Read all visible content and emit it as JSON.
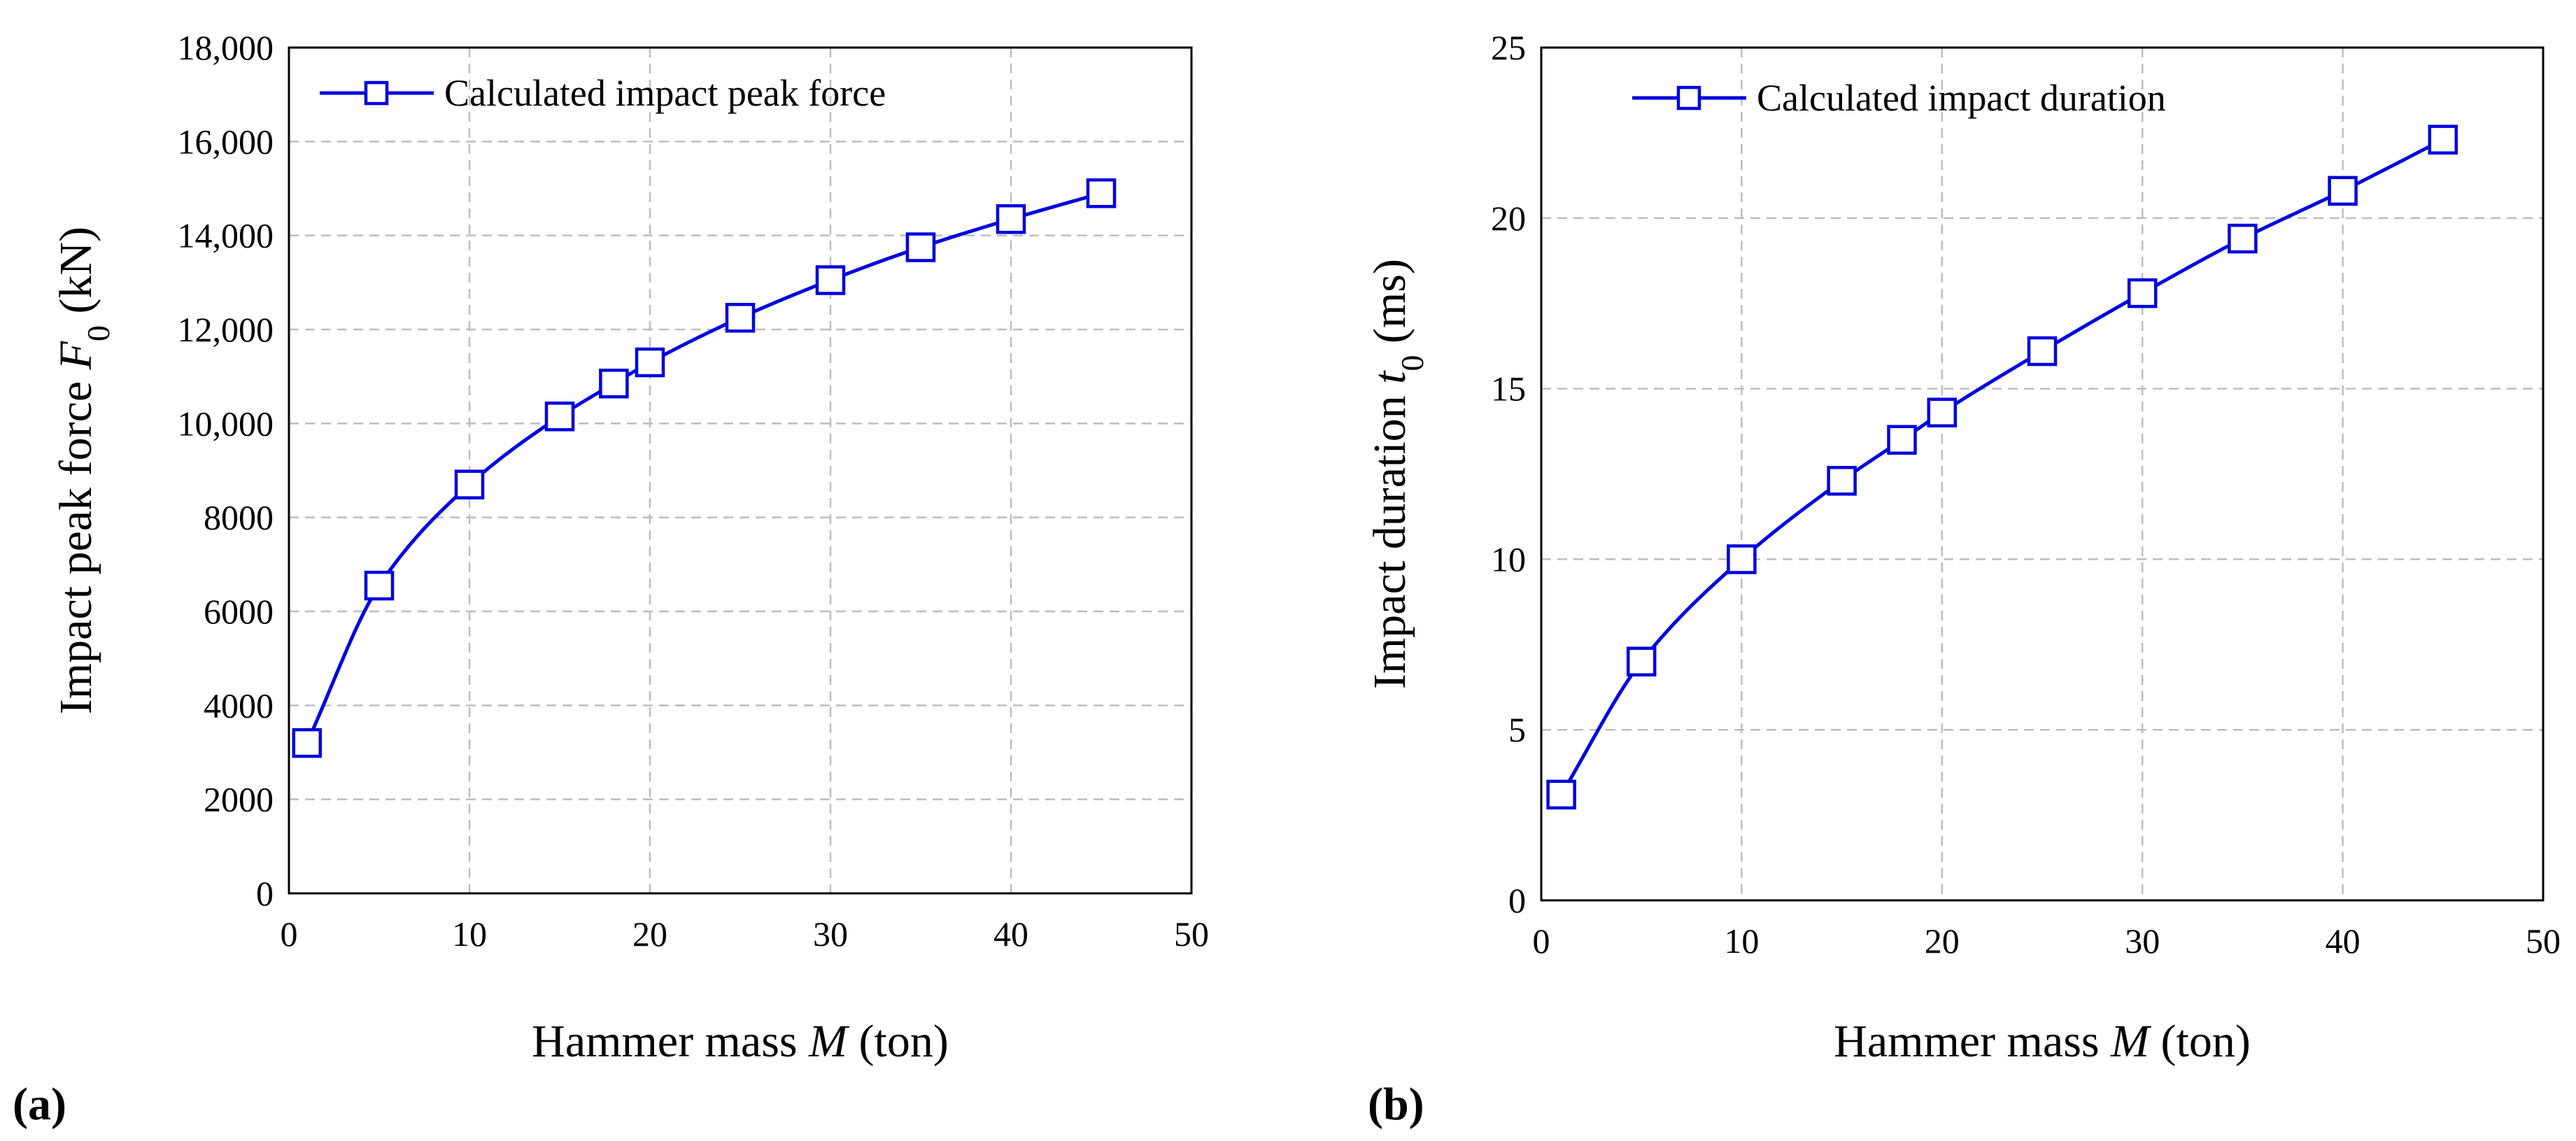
{
  "colors": {
    "series": "#0000dd",
    "grid": "#bdbdbd",
    "axis": "#000000"
  },
  "chart_data": [
    {
      "type": "line",
      "panel_label": "(a)",
      "title": "",
      "xlabel_prefix": "Hammer mass ",
      "xlabel_var": "M",
      "xlabel_suffix": " (ton)",
      "ylabel_prefix": "Impact peak force  ",
      "ylabel_var": "F",
      "ylabel_sub": "0",
      "ylabel_suffix": " (kN)",
      "xlim": [
        0,
        50
      ],
      "ylim": [
        0,
        18000
      ],
      "xticks": [
        0,
        10,
        20,
        30,
        40,
        50
      ],
      "yticks": [
        0,
        2000,
        4000,
        6000,
        8000,
        10000,
        12000,
        14000,
        16000,
        18000
      ],
      "ytick_labels": [
        "0",
        "2000",
        "4000",
        "6000",
        "8000",
        "10,000",
        "12,000",
        "14,000",
        "16,000",
        "18,000"
      ],
      "grid": true,
      "legend_position": "top-left",
      "series": [
        {
          "name": "Calculated impact peak force",
          "marker": "square",
          "x": [
            1,
            5,
            10,
            15,
            18,
            20,
            25,
            30,
            35,
            40,
            45
          ],
          "y": [
            3200,
            6550,
            8700,
            10150,
            10850,
            11300,
            12250,
            13050,
            13750,
            14350,
            14900
          ]
        }
      ]
    },
    {
      "type": "line",
      "panel_label": "(b)",
      "title": "",
      "xlabel_prefix": "Hammer mass ",
      "xlabel_var": "M",
      "xlabel_suffix": " (ton)",
      "ylabel_prefix": "Impact duration  ",
      "ylabel_var": "t",
      "ylabel_sub": "0",
      "ylabel_suffix": " (ms)",
      "xlim": [
        0,
        50
      ],
      "ylim": [
        0,
        25
      ],
      "xticks": [
        0,
        10,
        20,
        30,
        40,
        50
      ],
      "yticks": [
        0,
        5,
        10,
        15,
        20,
        25
      ],
      "ytick_labels": [
        "0",
        "5",
        "10",
        "15",
        "20",
        "25"
      ],
      "grid": true,
      "legend_position": "top-left",
      "series": [
        {
          "name": "Calculated impact duration",
          "marker": "square",
          "x": [
            1,
            5,
            10,
            15,
            18,
            20,
            25,
            30,
            35,
            40,
            45
          ],
          "y": [
            3.1,
            7.0,
            10.0,
            12.3,
            13.5,
            14.3,
            16.1,
            17.8,
            19.4,
            20.8,
            22.3
          ]
        }
      ]
    }
  ]
}
